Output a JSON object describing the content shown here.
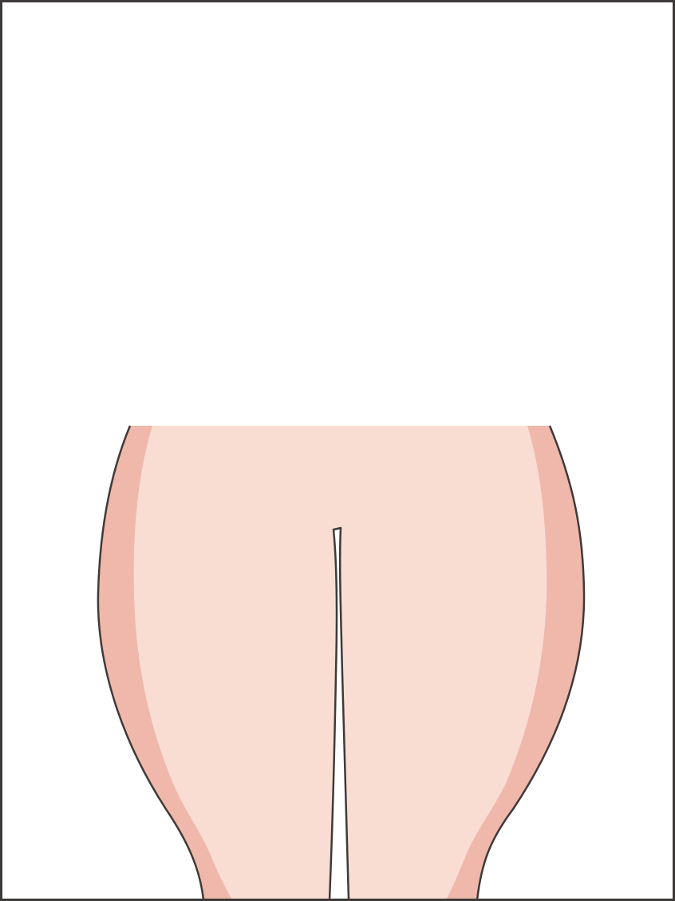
{
  "illustration": {
    "subject": "lower-body-hips-thighs-outline",
    "colors": {
      "frame_border": "#3e3a39",
      "background": "#ffffff",
      "skin_base": "#f9ddd3",
      "skin_shadow": "#f0b8ab",
      "outline": "#3e3a39",
      "gap_fill": "#ffffff"
    }
  }
}
